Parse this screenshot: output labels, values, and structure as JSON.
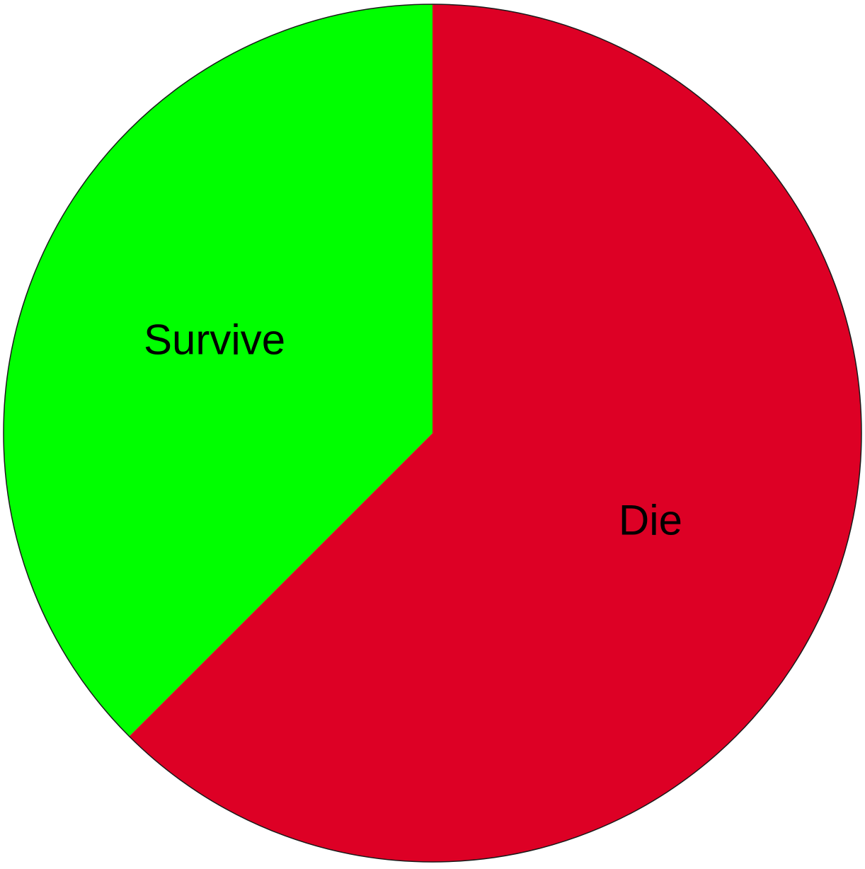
{
  "chart_data": {
    "type": "pie",
    "start_angle_deg": 0,
    "direction": "clockwise",
    "slices": [
      {
        "label": "Die",
        "value": 62.5,
        "color": "#dd0025"
      },
      {
        "label": "Survive",
        "value": 37.5,
        "color": "#00ff00"
      }
    ],
    "outline_color": "#1a1a1a",
    "legend": "none",
    "title": ""
  }
}
